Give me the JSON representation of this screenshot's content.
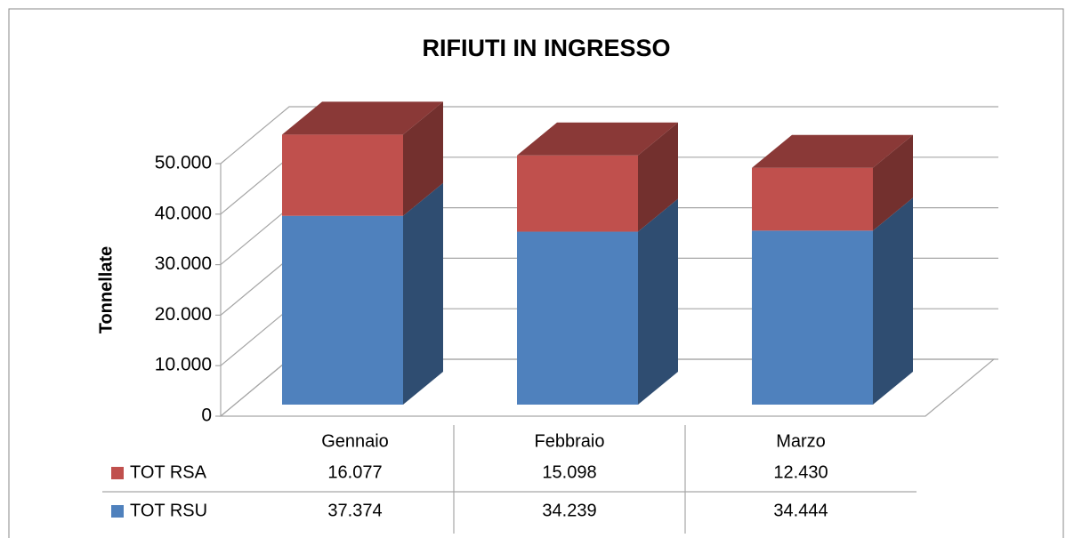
{
  "chart_data": {
    "type": "bar3d_stacked",
    "title": "RIFIUTI IN INGRESSO",
    "y_label": "Tonnellate",
    "categories": [
      "Gennaio",
      "Febbraio",
      "Marzo"
    ],
    "series": [
      {
        "name": "TOT RSU",
        "color": "#4f81bd",
        "values": [
          37374,
          34239,
          34444
        ],
        "value_labels": [
          "37.374",
          "34.239",
          "34.444"
        ]
      },
      {
        "name": "TOT RSA",
        "color": "#c0504d",
        "values": [
          16077,
          15098,
          12430
        ],
        "value_labels": [
          "16.077",
          "15.098",
          "12.430"
        ]
      }
    ],
    "ylim": [
      0,
      50000
    ],
    "yticks": [
      0,
      {
        "value": 10000,
        "label": "10.000"
      },
      {
        "value": 20000,
        "label": "20.000"
      },
      {
        "value": 30000,
        "label": "30.000"
      },
      {
        "value": 40000,
        "label": "40.000"
      },
      {
        "value": 50000,
        "label": "50.000"
      }
    ],
    "grid": true,
    "data_table": true
  }
}
